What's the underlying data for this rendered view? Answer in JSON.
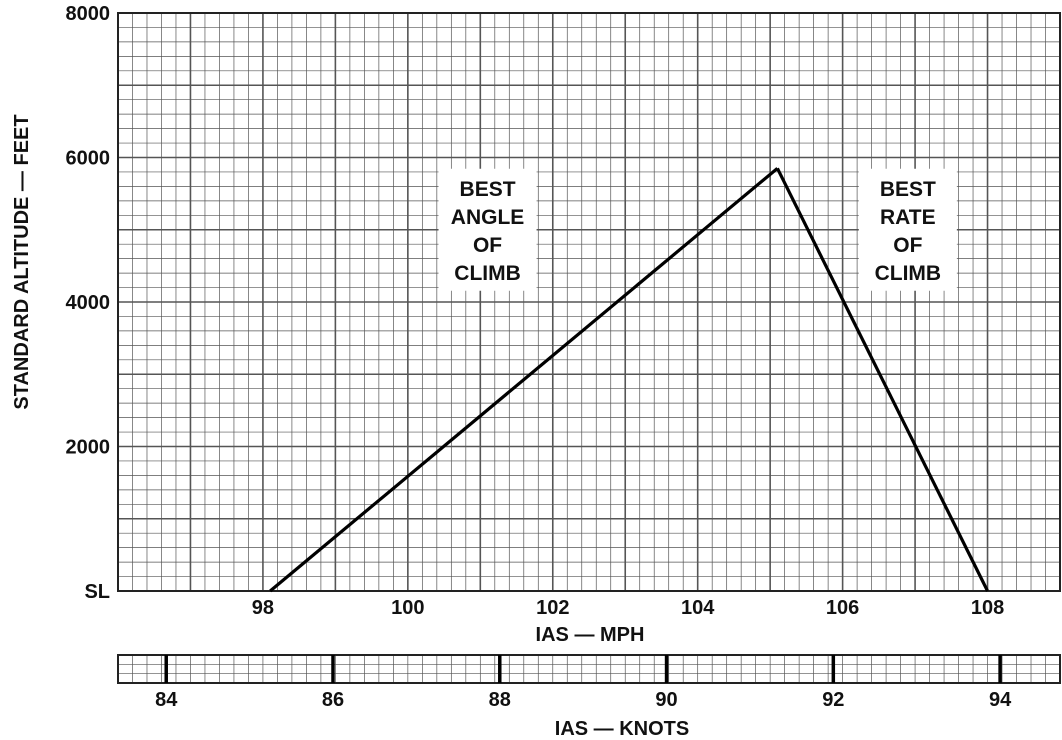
{
  "chart_data": [
    {
      "type": "line",
      "title": "",
      "xlabel": "IAS — MPH",
      "ylabel": "STANDARD ALTITUDE — FEET",
      "xlim": [
        96,
        109
      ],
      "ylim": [
        0,
        8000
      ],
      "x_ticks": [
        98,
        100,
        102,
        104,
        106,
        108
      ],
      "x_tick_labels": [
        "98",
        "100",
        "102",
        "104",
        "106",
        "108"
      ],
      "y_ticks": [
        0,
        2000,
        4000,
        6000,
        8000
      ],
      "y_tick_labels": [
        "SL",
        "2000",
        "4000",
        "6000",
        "8000"
      ],
      "grid": true,
      "series": [
        {
          "x": [
            98.1,
            105.1
          ],
          "y": [
            0,
            5850
          ]
        },
        {
          "x": [
            105.1,
            108.0
          ],
          "y": [
            5850,
            0
          ]
        }
      ],
      "annotations": [
        {
          "lines": [
            "BEST",
            "ANGLE",
            "OF",
            "CLIMB"
          ],
          "x": 101.1,
          "y": 5000
        },
        {
          "lines": [
            "BEST",
            "RATE",
            "OF",
            "CLIMB"
          ],
          "x": 106.9,
          "y": 5000
        }
      ]
    },
    {
      "type": "axis-scale",
      "xlabel": "IAS — KNOTS",
      "x_ticks": [
        84,
        86,
        88,
        90,
        92,
        94
      ],
      "x_tick_labels": [
        "84",
        "86",
        "88",
        "90",
        "92",
        "94"
      ]
    }
  ]
}
